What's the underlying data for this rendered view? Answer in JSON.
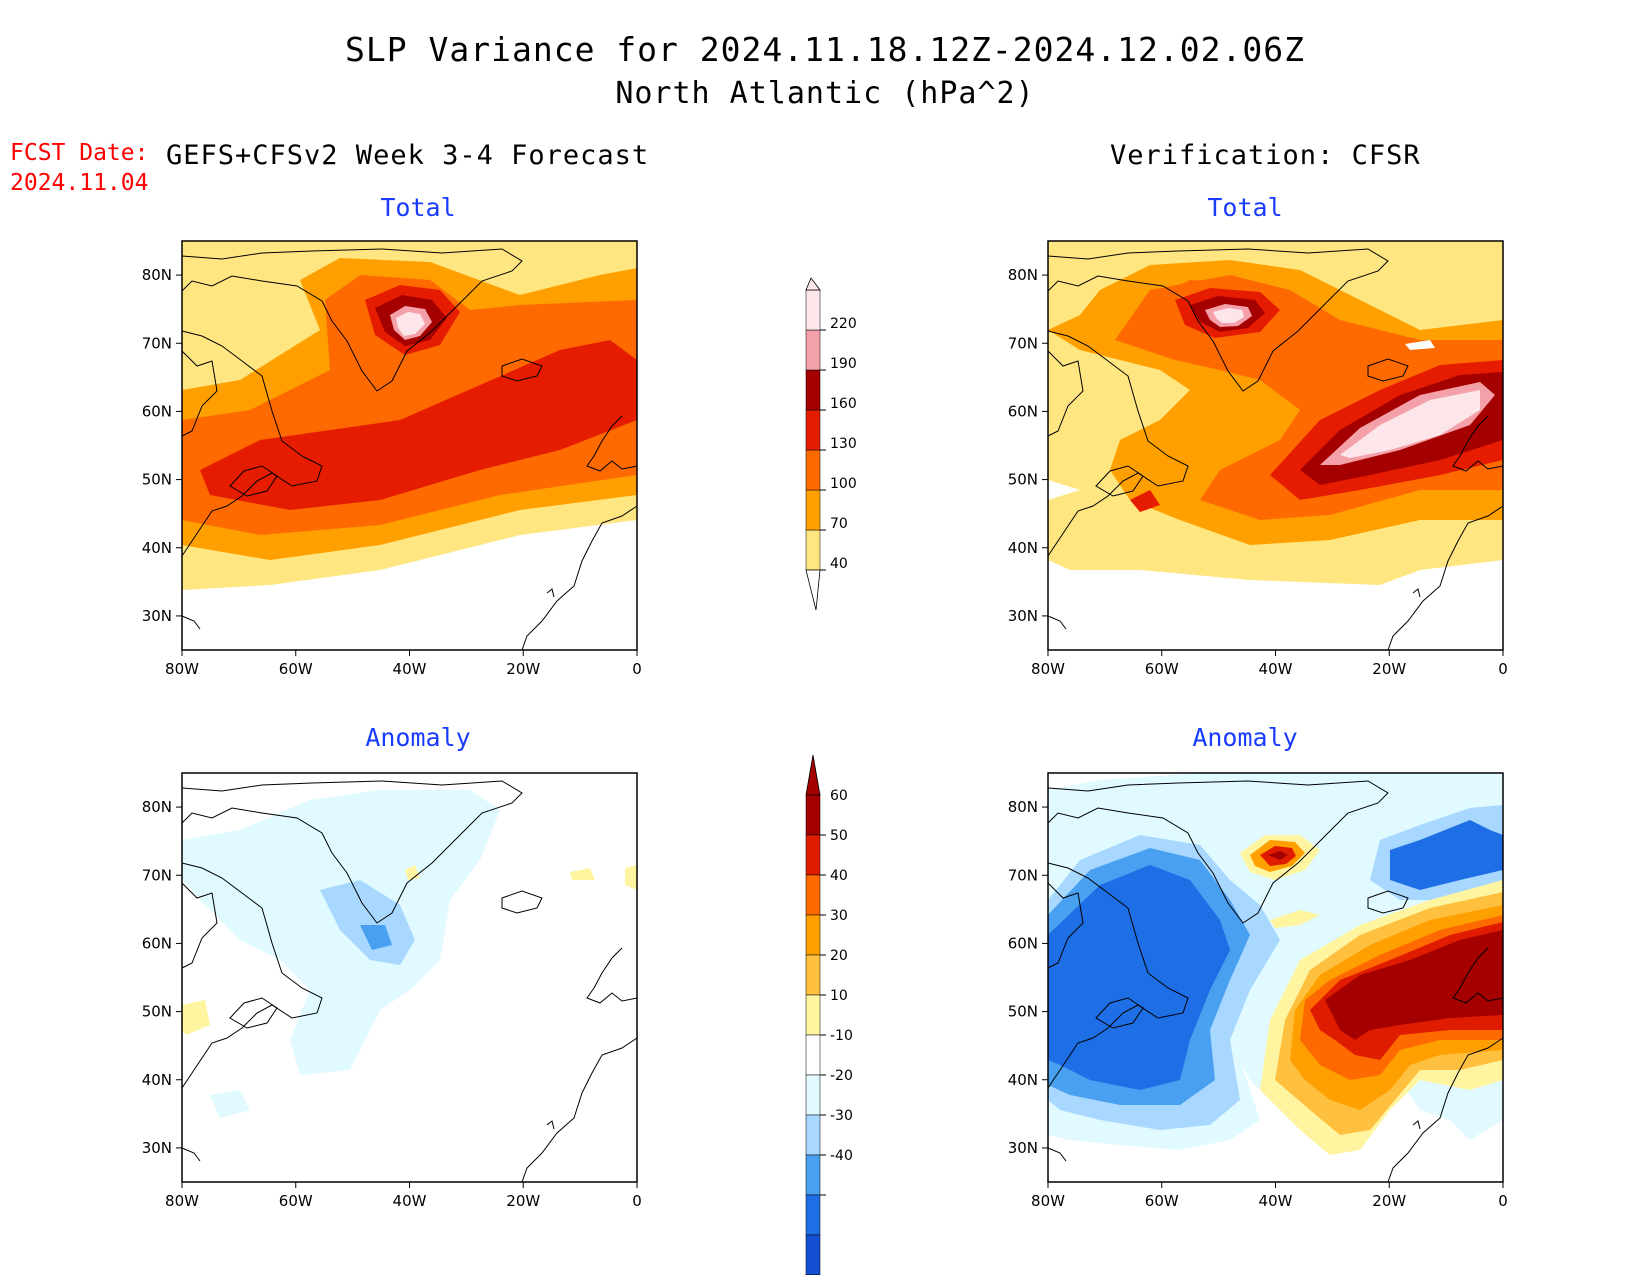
{
  "header": {
    "title": "SLP Variance for 2024.11.18.12Z-2024.12.02.06Z",
    "subtitle": "North Atlantic (hPa^2)",
    "fcst_label": "FCST Date:",
    "fcst_date": "2024.11.04",
    "left_heading": "GEFS+CFSv2 Week 3-4 Forecast",
    "right_heading": "Verification: CFSR"
  },
  "panels": [
    {
      "id": "forecast-total",
      "title": "Total"
    },
    {
      "id": "verification-total",
      "title": "Total"
    },
    {
      "id": "forecast-anomaly",
      "title": "Anomaly"
    },
    {
      "id": "verification-anomaly",
      "title": "Anomaly"
    }
  ],
  "axes": {
    "lon_ticks": [
      "80W",
      "60W",
      "40W",
      "20W",
      "0"
    ],
    "lat_ticks": [
      "80N",
      "70N",
      "60N",
      "50N",
      "40N",
      "30N"
    ],
    "lon_range": [
      -80,
      0
    ],
    "lat_range": [
      25,
      85
    ]
  },
  "colorbars": {
    "total": {
      "labels": [
        "40",
        "70",
        "100",
        "130",
        "160",
        "190",
        "220"
      ],
      "colors": [
        "#ffe680",
        "#ffa000",
        "#ff6a00",
        "#e61c00",
        "#a50000",
        "#f4a0a8",
        "#fde6ea"
      ]
    },
    "anomaly": {
      "labels": [
        "60",
        "50",
        "40",
        "30",
        "20",
        "10",
        "-10",
        "-20",
        "-30",
        "-40"
      ],
      "colors": [
        "#a50000",
        "#e01c00",
        "#ff6a00",
        "#ffa000",
        "#ffc040",
        "#fff5a0",
        "#ffffff",
        "#e0faff",
        "#a8d8ff",
        "#4aa0f0",
        "#1e6ee6",
        "#1450d2"
      ]
    }
  },
  "colors": {
    "title_blue": "#1a3cff",
    "fcst_red": "#ff0000"
  }
}
